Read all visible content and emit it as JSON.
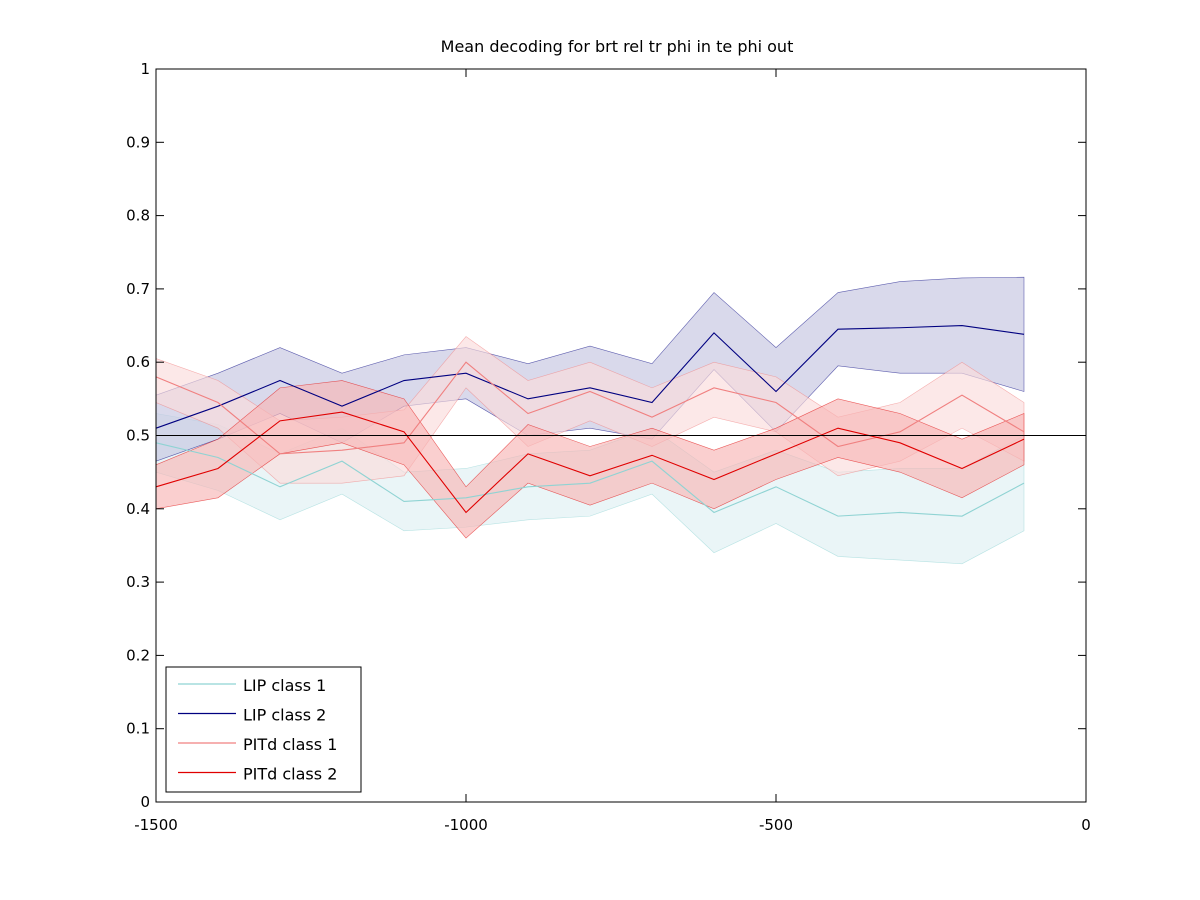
{
  "chart_data": {
    "type": "line",
    "title": "Mean decoding for brt rel tr phi in te phi out",
    "xlabel": "",
    "ylabel": "",
    "xlim": [
      -1500,
      0
    ],
    "ylim": [
      0,
      1
    ],
    "xticks": [
      -1500,
      -1000,
      -500,
      0
    ],
    "xtick_labels": [
      "-1500",
      "-1000",
      "-500",
      "0"
    ],
    "yticks": [
      0,
      0.1,
      0.2,
      0.3,
      0.4,
      0.5,
      0.6,
      0.7,
      0.8,
      0.9,
      1
    ],
    "ytick_labels": [
      "0",
      "0.1",
      "0.2",
      "0.3",
      "0.4",
      "0.5",
      "0.6",
      "0.7",
      "0.8",
      "0.9",
      "1"
    ],
    "reference_line": 0.5,
    "grid": false,
    "legend_position": "bottom-left",
    "x": [
      -1500,
      -1400,
      -1300,
      -1200,
      -1100,
      -1000,
      -900,
      -800,
      -700,
      -600,
      -500,
      -400,
      -300,
      -200,
      -100
    ],
    "series": [
      {
        "name": "LIP class 1",
        "color": "#8fd3d3",
        "fill": "#dff0f3",
        "values": [
          0.49,
          0.47,
          0.43,
          0.465,
          0.41,
          0.415,
          0.43,
          0.435,
          0.465,
          0.395,
          0.43,
          0.39,
          0.395,
          0.39,
          0.435
        ],
        "upper": [
          0.53,
          0.515,
          0.475,
          0.51,
          0.45,
          0.455,
          0.475,
          0.48,
          0.51,
          0.45,
          0.48,
          0.45,
          0.455,
          0.455,
          0.5
        ],
        "lower": [
          0.45,
          0.425,
          0.385,
          0.42,
          0.37,
          0.375,
          0.385,
          0.39,
          0.42,
          0.34,
          0.38,
          0.335,
          0.33,
          0.325,
          0.37
        ]
      },
      {
        "name": "LIP class 2",
        "color": "#000080",
        "fill": "#c5c5e0",
        "values": [
          0.51,
          0.54,
          0.575,
          0.54,
          0.575,
          0.585,
          0.55,
          0.565,
          0.545,
          0.64,
          0.56,
          0.645,
          0.647,
          0.65,
          0.638
        ],
        "upper": [
          0.555,
          0.585,
          0.62,
          0.585,
          0.61,
          0.62,
          0.598,
          0.622,
          0.598,
          0.695,
          0.62,
          0.695,
          0.71,
          0.715,
          0.716
        ],
        "lower": [
          0.465,
          0.495,
          0.53,
          0.49,
          0.54,
          0.55,
          0.5,
          0.51,
          0.495,
          0.59,
          0.505,
          0.595,
          0.585,
          0.585,
          0.56
        ]
      },
      {
        "name": "PITd class 1",
        "color": "#f08080",
        "fill": "#fbdcdc",
        "values": [
          0.58,
          0.545,
          0.475,
          0.48,
          0.49,
          0.6,
          0.53,
          0.56,
          0.525,
          0.565,
          0.545,
          0.485,
          0.505,
          0.555,
          0.505
        ],
        "upper": [
          0.605,
          0.575,
          0.52,
          0.525,
          0.535,
          0.635,
          0.575,
          0.6,
          0.565,
          0.6,
          0.58,
          0.525,
          0.545,
          0.6,
          0.545
        ],
        "lower": [
          0.545,
          0.51,
          0.435,
          0.435,
          0.445,
          0.565,
          0.485,
          0.52,
          0.485,
          0.525,
          0.505,
          0.445,
          0.465,
          0.51,
          0.465
        ]
      },
      {
        "name": "PITd class 2",
        "color": "#e00000",
        "fill": "#f7b5b5",
        "values": [
          0.43,
          0.455,
          0.52,
          0.532,
          0.505,
          0.395,
          0.475,
          0.445,
          0.473,
          0.44,
          0.475,
          0.51,
          0.49,
          0.455,
          0.495
        ],
        "upper": [
          0.46,
          0.495,
          0.565,
          0.575,
          0.55,
          0.43,
          0.515,
          0.485,
          0.51,
          0.48,
          0.51,
          0.55,
          0.53,
          0.495,
          0.53
        ],
        "lower": [
          0.4,
          0.415,
          0.475,
          0.49,
          0.46,
          0.36,
          0.435,
          0.405,
          0.435,
          0.4,
          0.44,
          0.47,
          0.45,
          0.415,
          0.46
        ]
      }
    ]
  }
}
